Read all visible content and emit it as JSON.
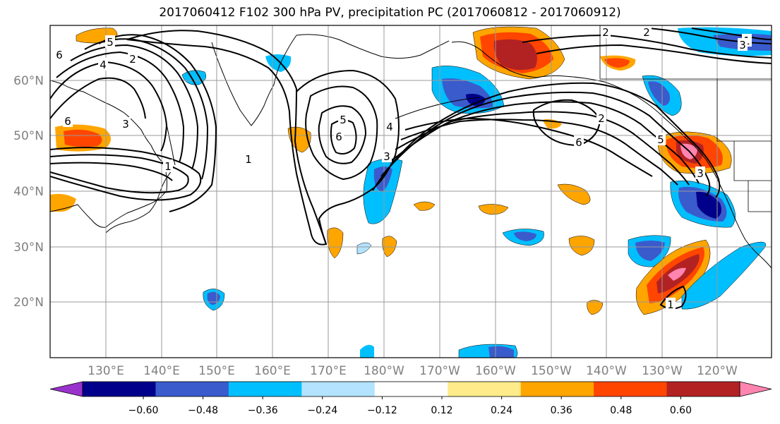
{
  "title": "2017060412 F102 300 hPa PV, precipitation PC (2017060812 - 2017060912)",
  "map": {
    "lat_labels": [
      "60°N",
      "50°N",
      "40°N",
      "30°N",
      "20°N"
    ],
    "lon_labels": [
      "130°E",
      "140°E",
      "150°E",
      "160°E",
      "170°E",
      "180°W",
      "170°W",
      "160°W",
      "150°W",
      "140°W",
      "130°W",
      "120°W"
    ],
    "pv_contour_labels": [
      "6",
      "5",
      "4",
      "3",
      "2",
      "1",
      "5",
      "6",
      "3",
      "1",
      "4",
      "6",
      "2",
      "6",
      "5",
      "3",
      "2",
      "1",
      "2",
      "3",
      "1"
    ]
  },
  "colorbar": {
    "ticks": [
      "−0.60",
      "−0.48",
      "−0.36",
      "−0.24",
      "−0.12",
      "0.12",
      "0.24",
      "0.36",
      "0.48",
      "0.60"
    ],
    "colors": [
      "#9932CC",
      "#00008B",
      "#3A5BCC",
      "#00BFFF",
      "#B3E3FF",
      "#FFFFFF",
      "#FFEB8A",
      "#FFA500",
      "#FF4500",
      "#B22222",
      "#FF85B0"
    ]
  }
}
